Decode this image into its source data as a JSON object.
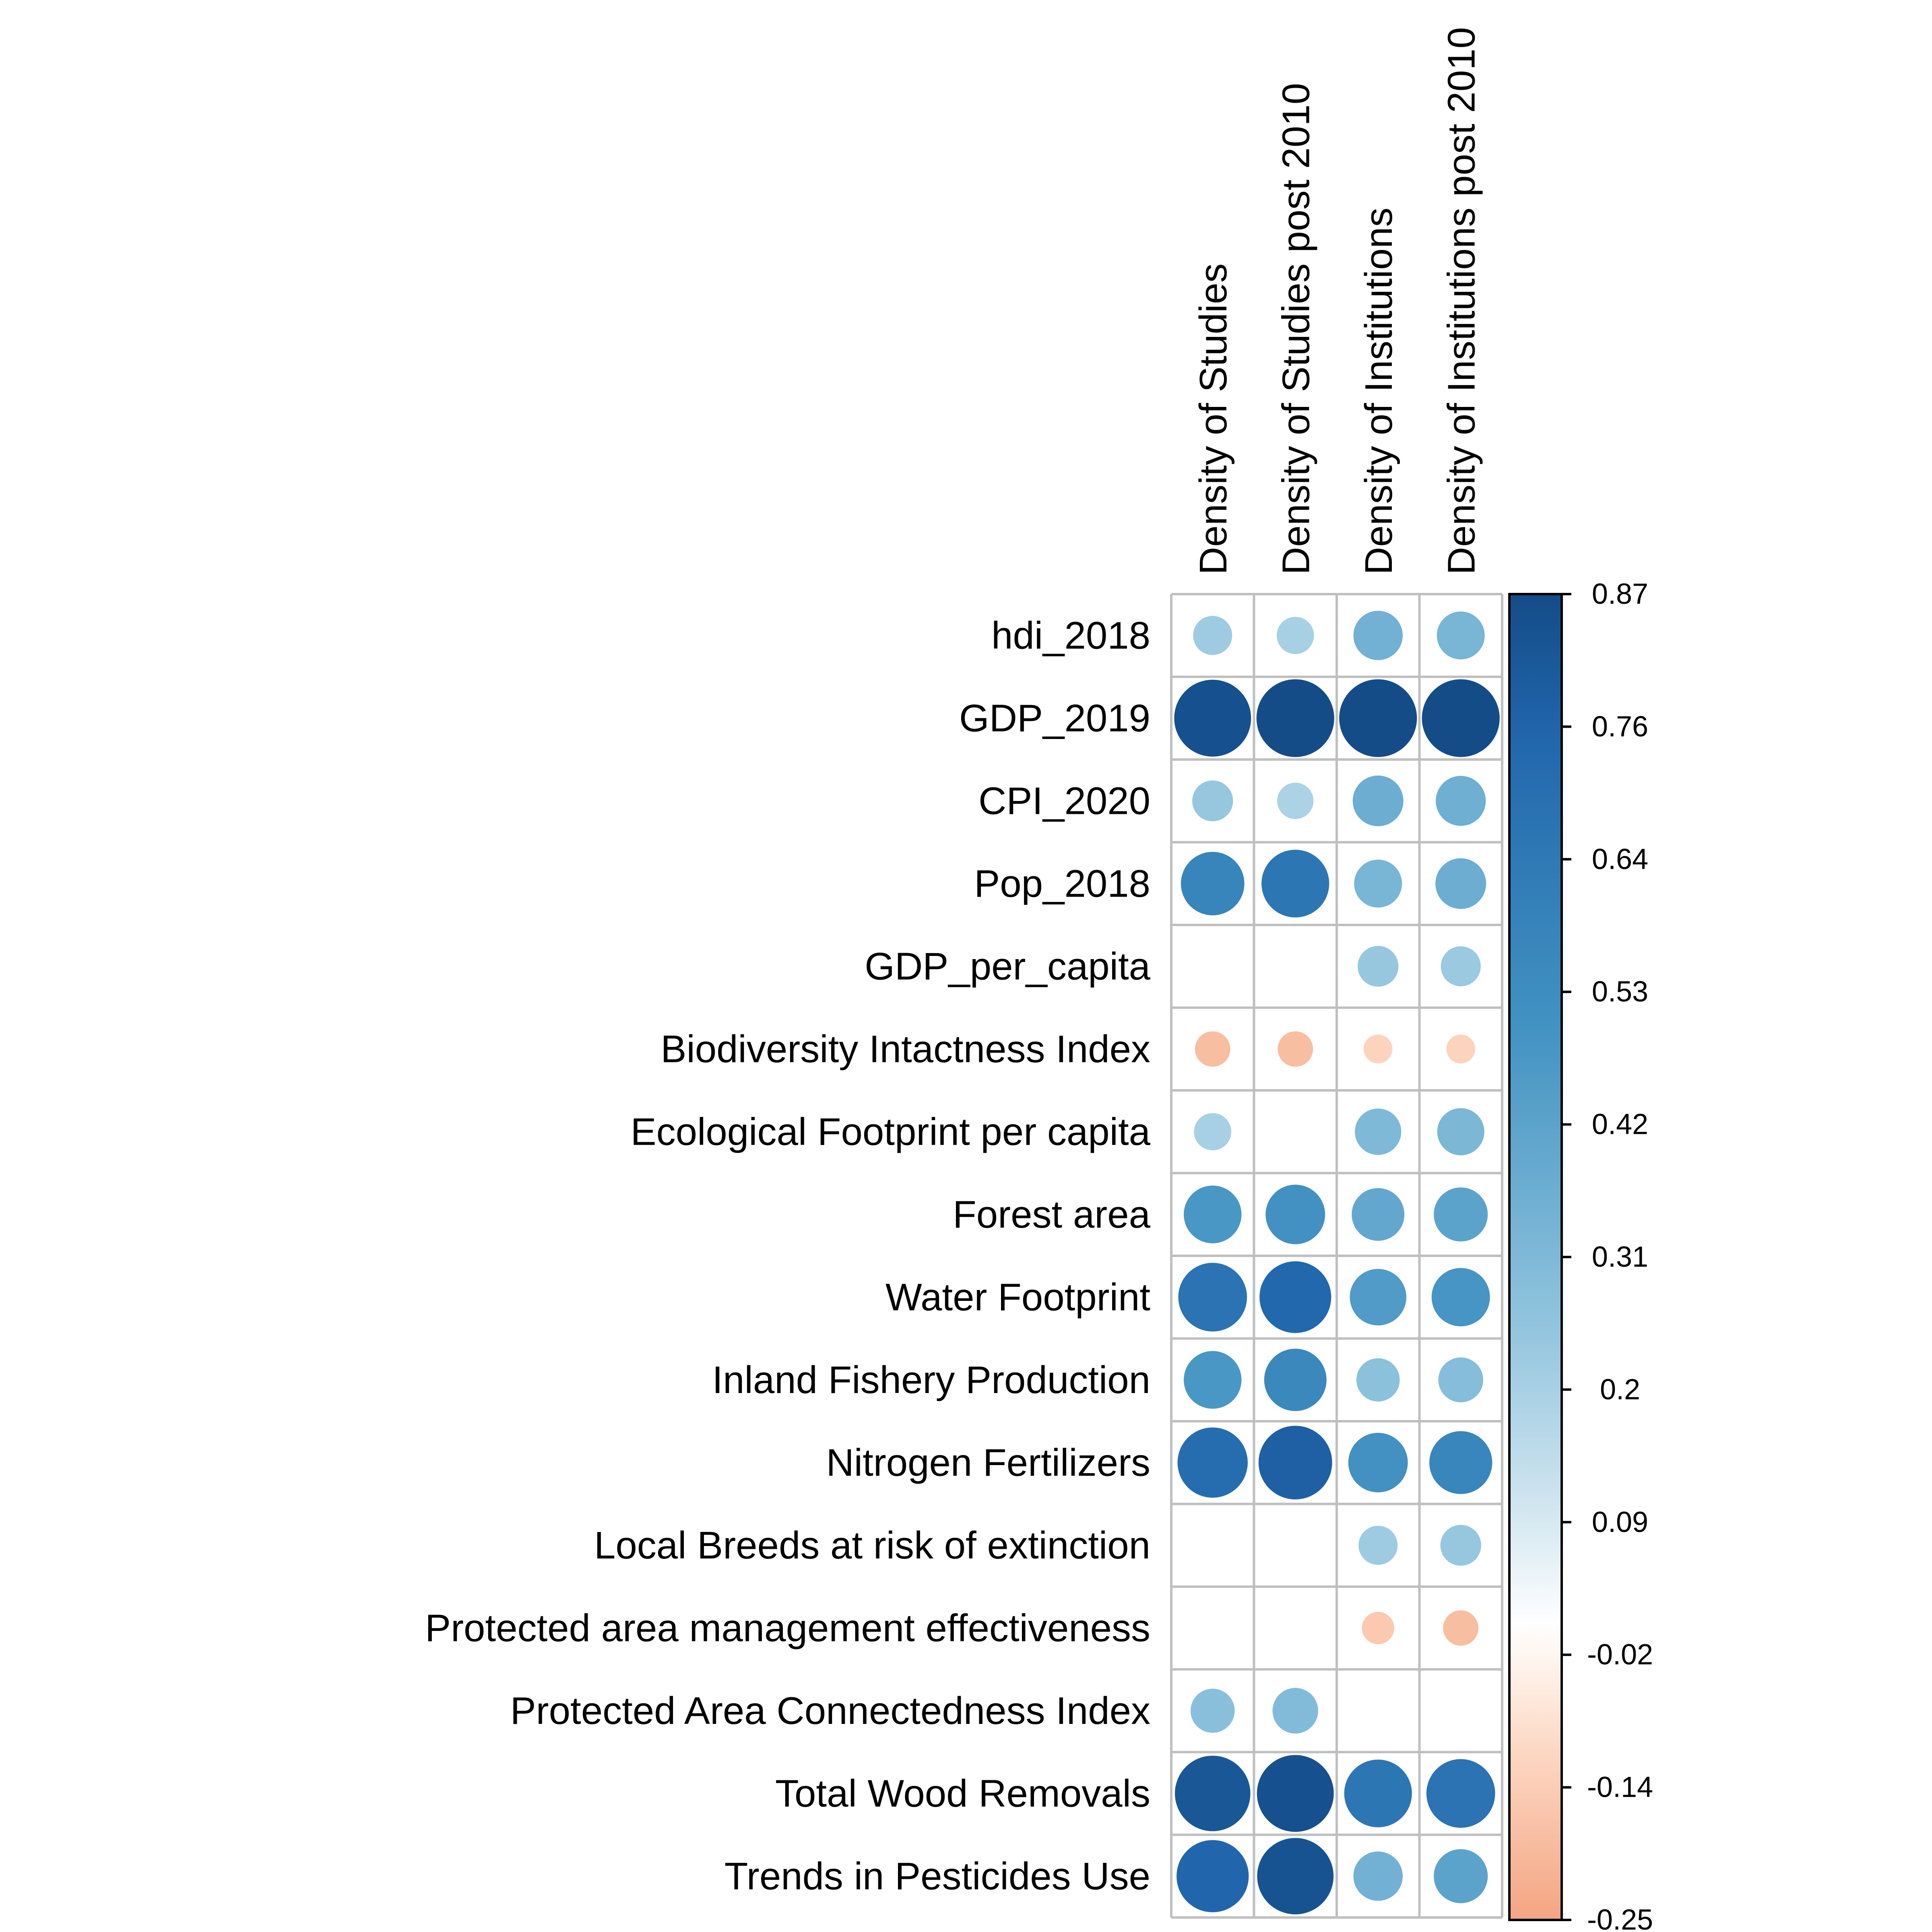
{
  "chart_data": {
    "type": "heatmap",
    "style": "circle-correlation-matrix",
    "columns": [
      "Density of Studies",
      "Density of Studies post 2010",
      "Density of Institutions",
      "Density of Institutions post 2010"
    ],
    "rows": [
      "hdi_2018",
      "GDP_2019",
      "CPI_2020",
      "Pop_2018",
      "GDP_per_capita",
      "Biodiversity Intactness Index",
      "Ecological Footprint per capita",
      "Forest area",
      "Water Footprint",
      "Inland Fishery Production",
      "Nitrogen Fertilizers",
      "Local Breeds at risk of extinction",
      "Protected area management effectiveness",
      "Protected Area Connectedness Index",
      "Total Wood Removals",
      "Trends in Pesticides Use"
    ],
    "values": [
      [
        0.22,
        0.2,
        0.35,
        0.33
      ],
      [
        0.85,
        0.87,
        0.87,
        0.87
      ],
      [
        0.24,
        0.19,
        0.37,
        0.36
      ],
      [
        0.58,
        0.66,
        0.33,
        0.37
      ],
      [
        null,
        null,
        0.24,
        0.23
      ],
      [
        -0.18,
        -0.18,
        -0.12,
        -0.12
      ],
      [
        0.2,
        null,
        0.31,
        0.32
      ],
      [
        0.48,
        0.51,
        0.4,
        0.42
      ],
      [
        0.68,
        0.74,
        0.46,
        0.49
      ],
      [
        0.48,
        0.56,
        0.27,
        0.29
      ],
      [
        0.71,
        0.78,
        0.51,
        0.57
      ],
      [
        null,
        null,
        0.22,
        0.24
      ],
      [
        null,
        null,
        -0.15,
        -0.18
      ],
      [
        0.28,
        0.3,
        null,
        null
      ],
      [
        0.82,
        0.85,
        0.66,
        0.68
      ],
      [
        0.75,
        0.84,
        0.35,
        0.42
      ]
    ],
    "colorbar": {
      "range": [
        -0.25,
        0.87
      ],
      "ticks": [
        "0.87",
        "0.76",
        "0.64",
        "0.53",
        "0.42",
        "0.31",
        "0.2",
        "0.09",
        "-0.02",
        "-0.14",
        "-0.25"
      ],
      "colors": {
        "negative": "#f4a582",
        "neutral": "#ffffff",
        "positive_light": "#92c5de",
        "positive_mid": "#4393c3",
        "positive_dark": "#2166ac",
        "positive_max": "#053061"
      }
    },
    "grid": true,
    "legend_position": "right"
  }
}
